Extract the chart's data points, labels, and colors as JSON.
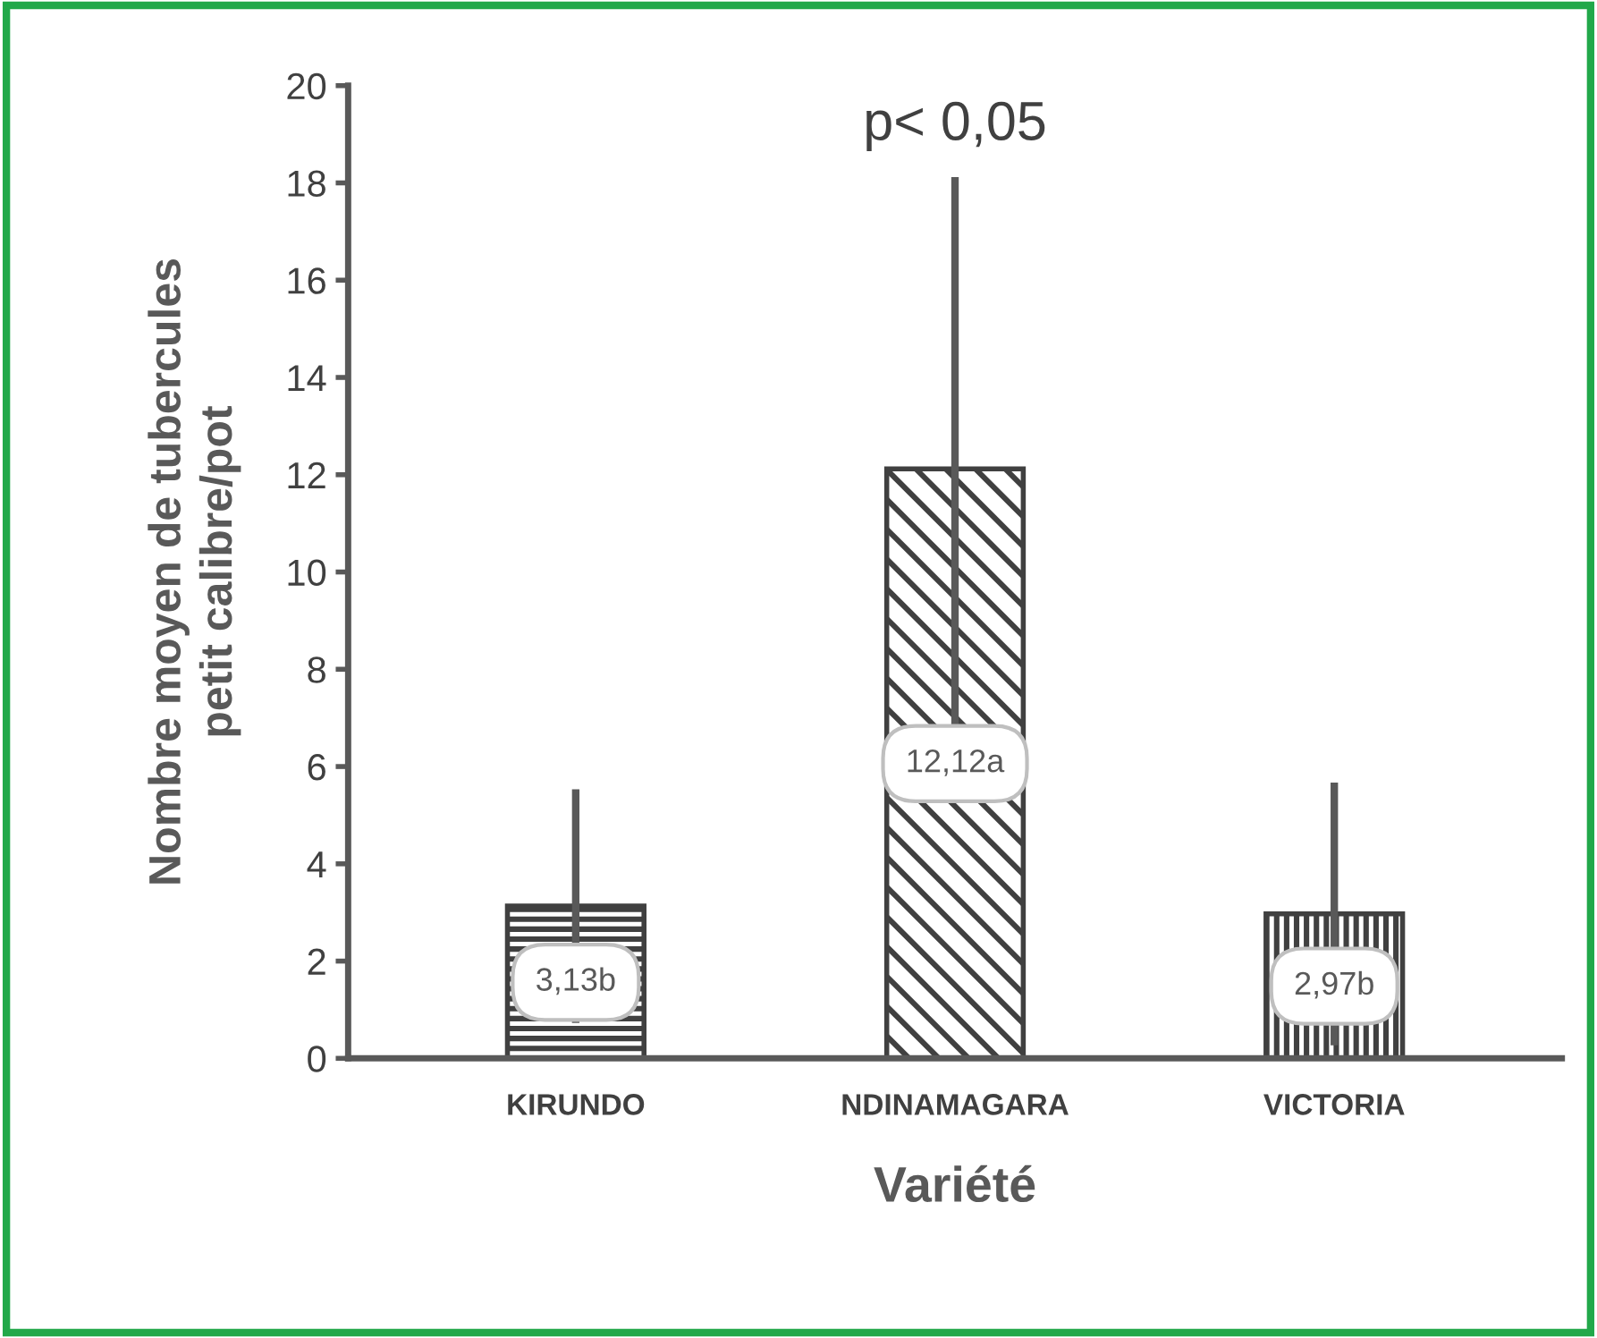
{
  "chart_data": {
    "type": "bar",
    "xlabel": "Variété",
    "ylabel": "Nombre moyen de tubercules\npetit calibre/pot",
    "categories": [
      "KIRUNDO",
      "NDINAMAGARA",
      "VICTORIA"
    ],
    "values": [
      3.13,
      12.12,
      2.97
    ],
    "errors": [
      2.4,
      6.0,
      2.7
    ],
    "color": "#404040",
    "value_labels": [
      "3,13b",
      "12,12a",
      "2,97b"
    ],
    "annotations": [
      "p< 0,05"
    ],
    "ylim": [
      0,
      20
    ],
    "yticks": [
      0,
      2,
      4,
      6,
      8,
      10,
      12,
      14,
      16,
      18,
      20
    ],
    "grid": false,
    "legend": false
  }
}
